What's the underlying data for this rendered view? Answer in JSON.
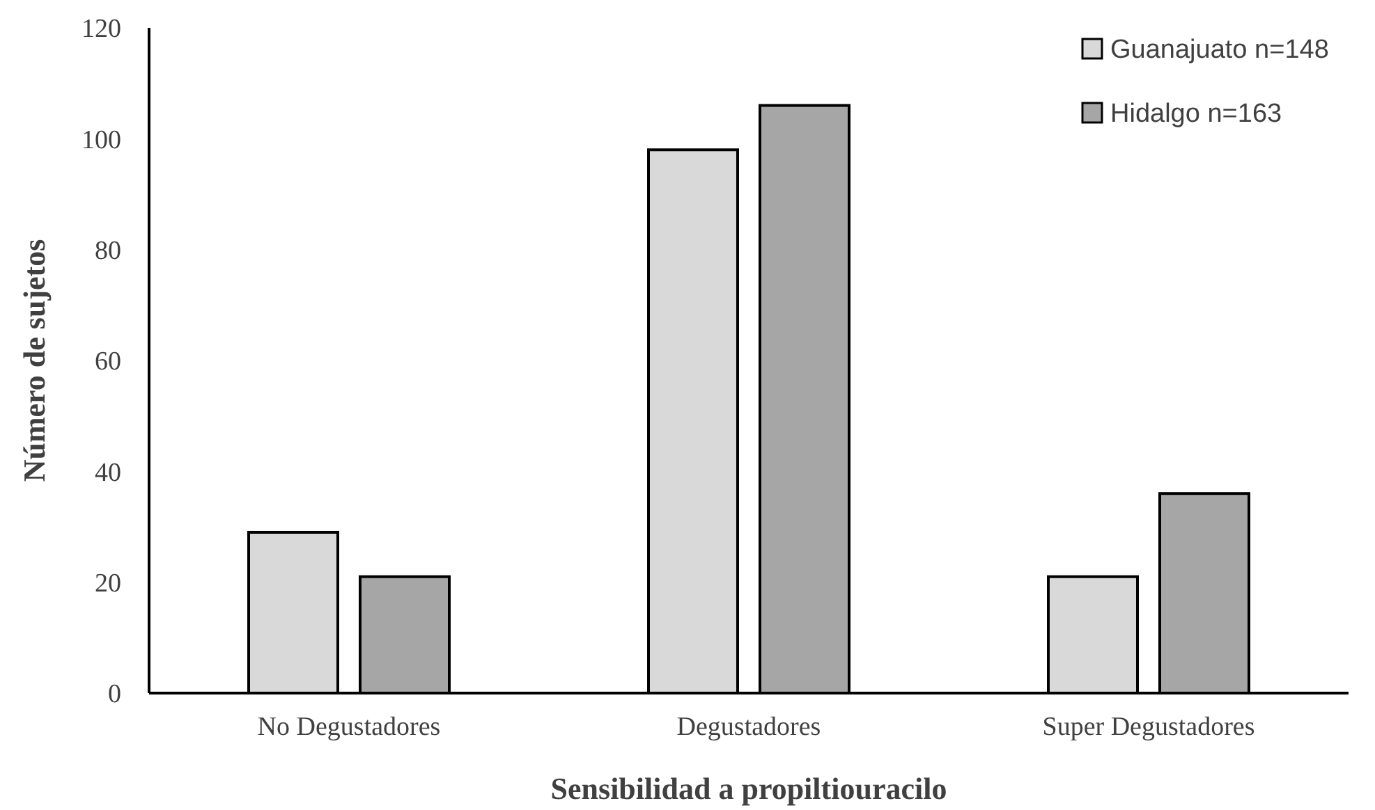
{
  "chart_data": {
    "type": "bar",
    "xlabel": "Sensibilidad  a propiltiouracilo",
    "ylabel": "Número de sujetos",
    "categories": [
      "No Degustadores",
      "Degustadores",
      "Super Degustadores"
    ],
    "series": [
      {
        "name": "Guanajuato n=148",
        "color": "#d9d9d9",
        "values": [
          29,
          98,
          21
        ]
      },
      {
        "name": "Hidalgo n=163",
        "color": "#a6a6a6",
        "values": [
          21,
          106,
          36
        ]
      }
    ],
    "ylim": [
      0,
      120
    ],
    "yticks": [
      0,
      20,
      40,
      60,
      80,
      100,
      120
    ],
    "legend": "top right"
  }
}
